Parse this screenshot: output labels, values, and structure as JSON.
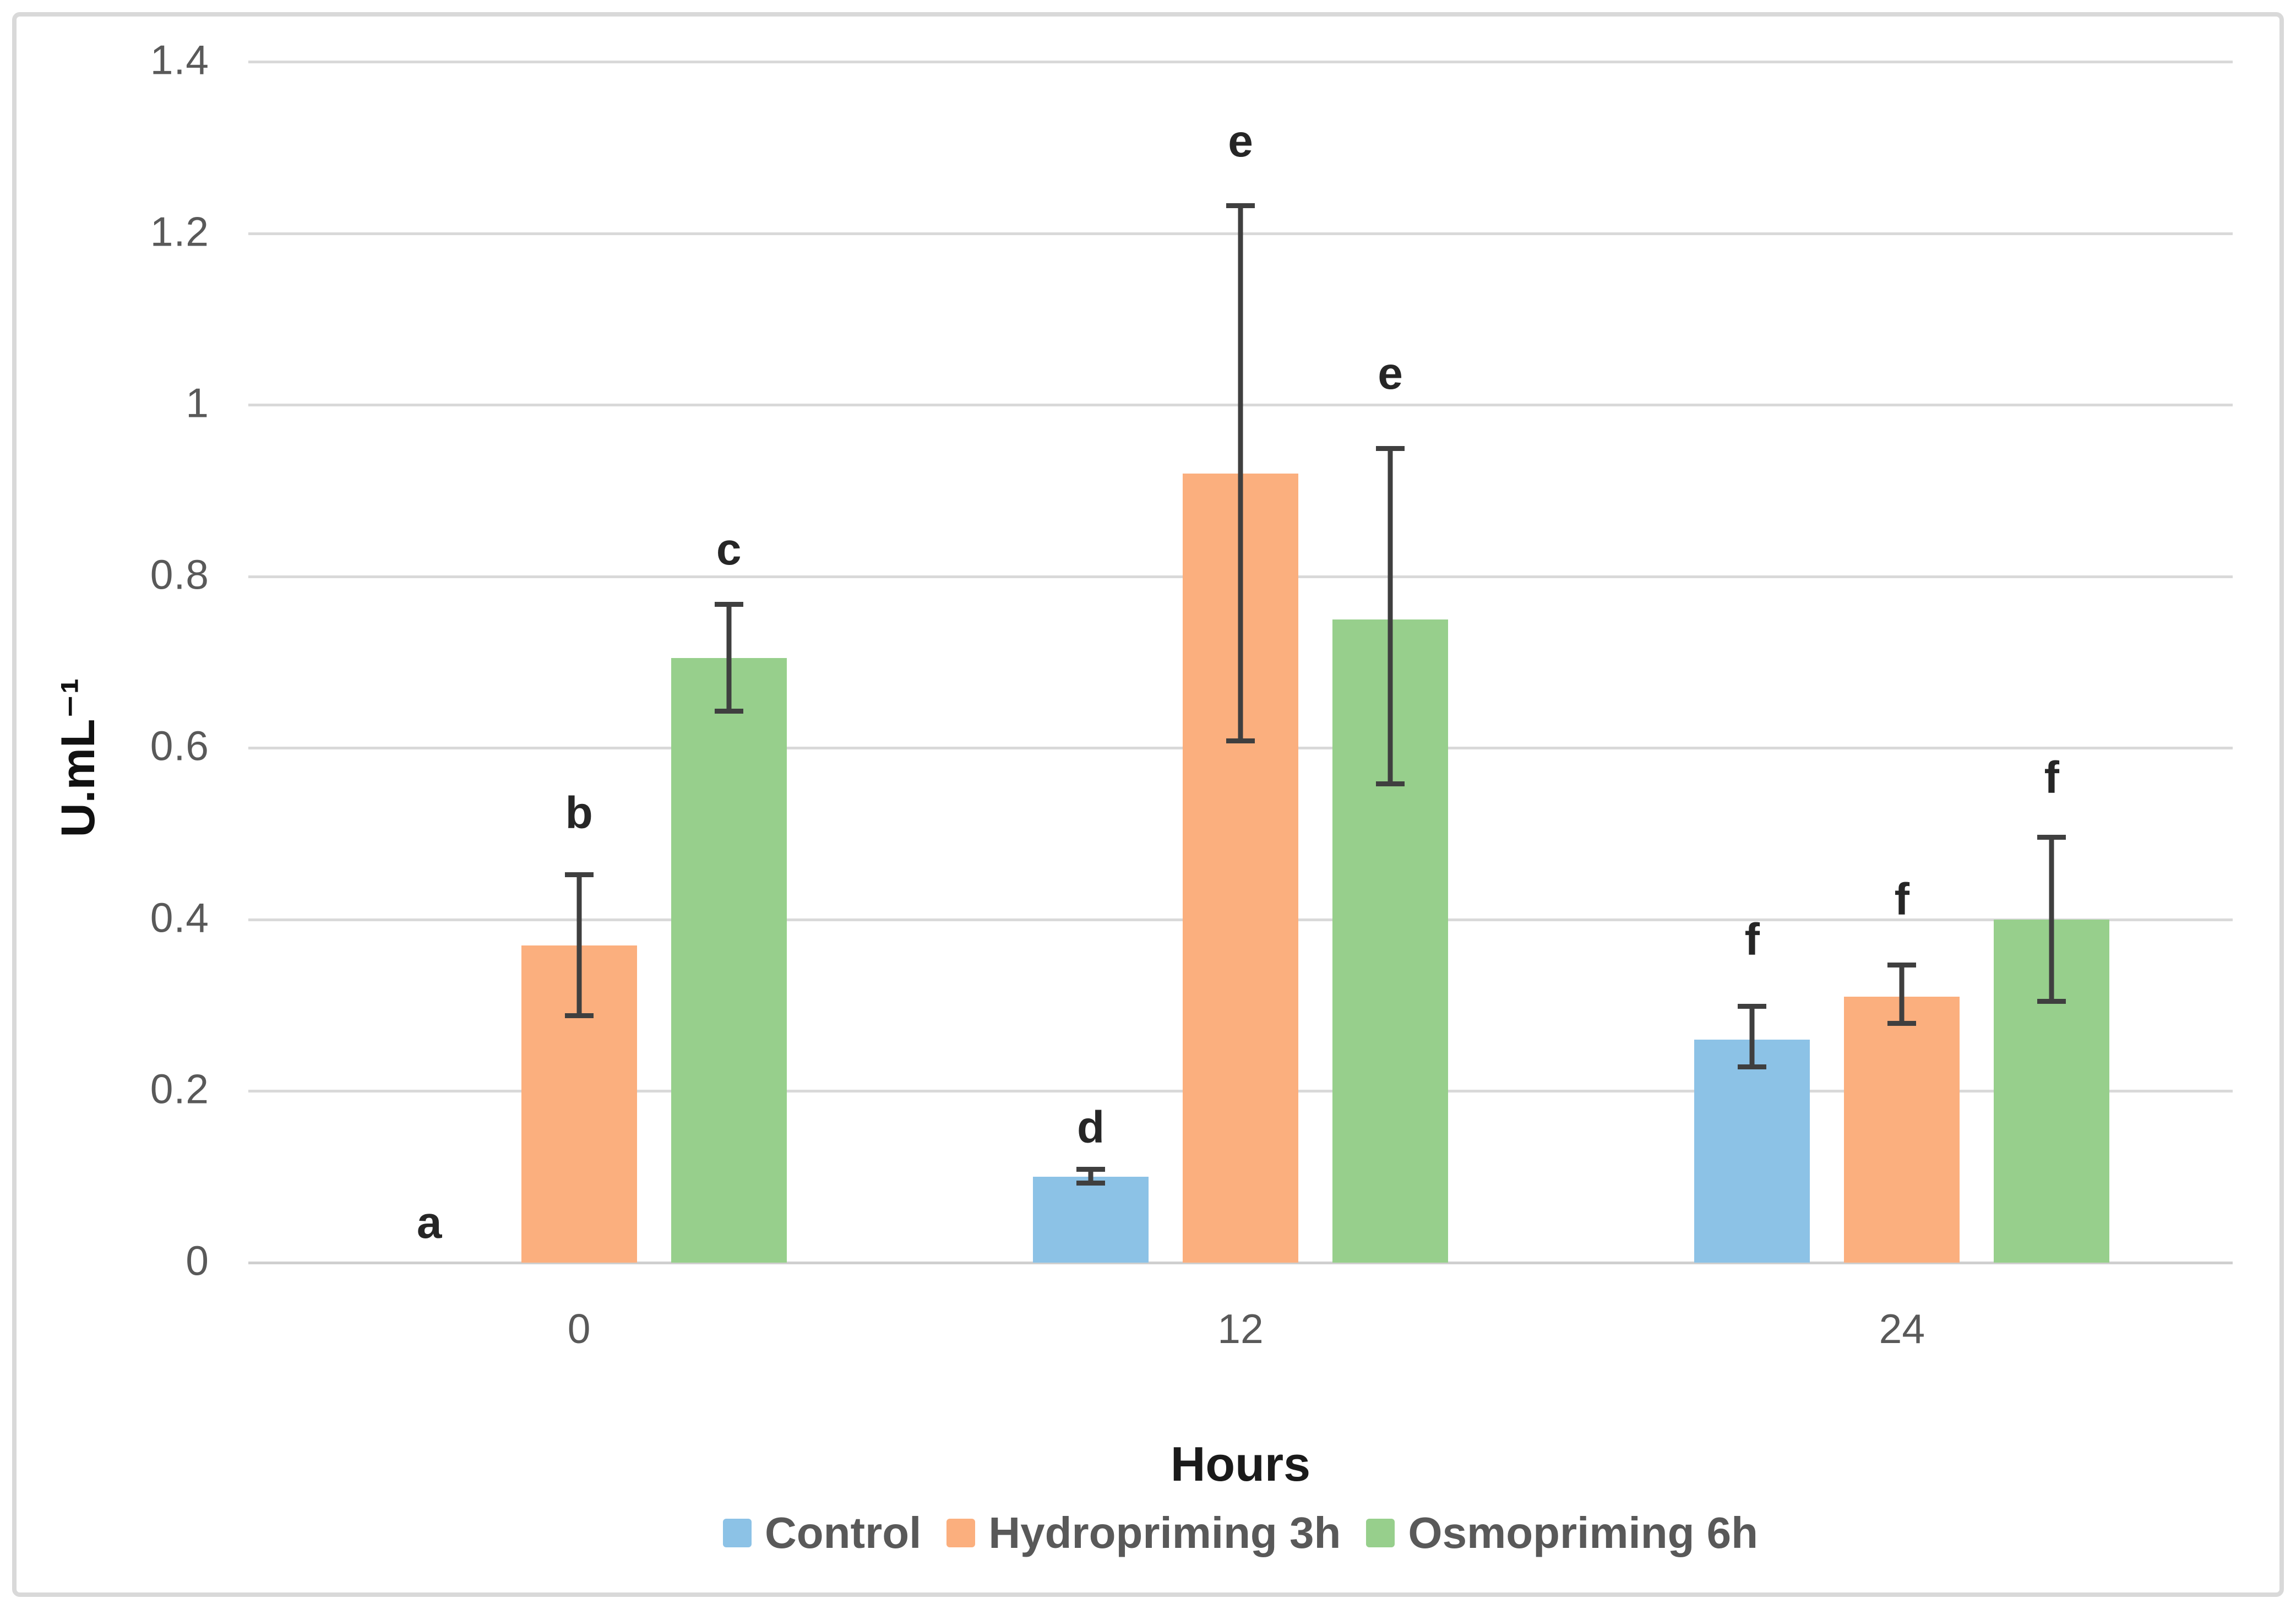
{
  "chart_data": {
    "type": "bar",
    "xlabel": "Hours",
    "ylabel": "U.mL⁻¹",
    "categories": [
      "0",
      "12",
      "24"
    ],
    "ylim": [
      0,
      1.4
    ],
    "y_ticks": [
      "0",
      "0.2",
      "0.4",
      "0.6",
      "0.8",
      "1",
      "1.2",
      "1.4"
    ],
    "grid": true,
    "legend_position": "bottom",
    "series": [
      {
        "name": "Control",
        "color": "#8CC2E6",
        "values": [
          0,
          0.1,
          0.26
        ],
        "error_low": [
          null,
          0.09,
          0.225
        ],
        "error_high": [
          null,
          0.112,
          0.302
        ],
        "letters": [
          "a",
          "d",
          "f"
        ],
        "letter_y": [
          0.046,
          0.157,
          0.376
        ]
      },
      {
        "name": "Hydropriming 3h",
        "color": "#FBAF7E",
        "values": [
          0.37,
          0.92,
          0.31
        ],
        "error_low": [
          0.285,
          0.605,
          0.276
        ],
        "error_high": [
          0.455,
          1.235,
          0.35
        ],
        "letters": [
          "b",
          "e",
          "f"
        ],
        "letter_y": [
          0.524,
          1.307,
          0.423
        ]
      },
      {
        "name": "Osmopriming 6h",
        "color": "#97CF8C",
        "values": [
          0.705,
          0.75,
          0.4
        ],
        "error_low": [
          0.64,
          0.555,
          0.302
        ],
        "error_high": [
          0.77,
          0.952,
          0.499
        ],
        "letters": [
          "c",
          "e",
          "f"
        ],
        "letter_y": [
          0.831,
          1.036,
          0.565
        ]
      }
    ]
  },
  "colors": {
    "grid": "#D9D9D9",
    "baseline": "#CFCFCF",
    "error_bar": "#3F3F3F",
    "axis_text": "#595959",
    "letter_text": "#262626",
    "border": "#D9D9D9",
    "background": "#FFFFFF"
  }
}
